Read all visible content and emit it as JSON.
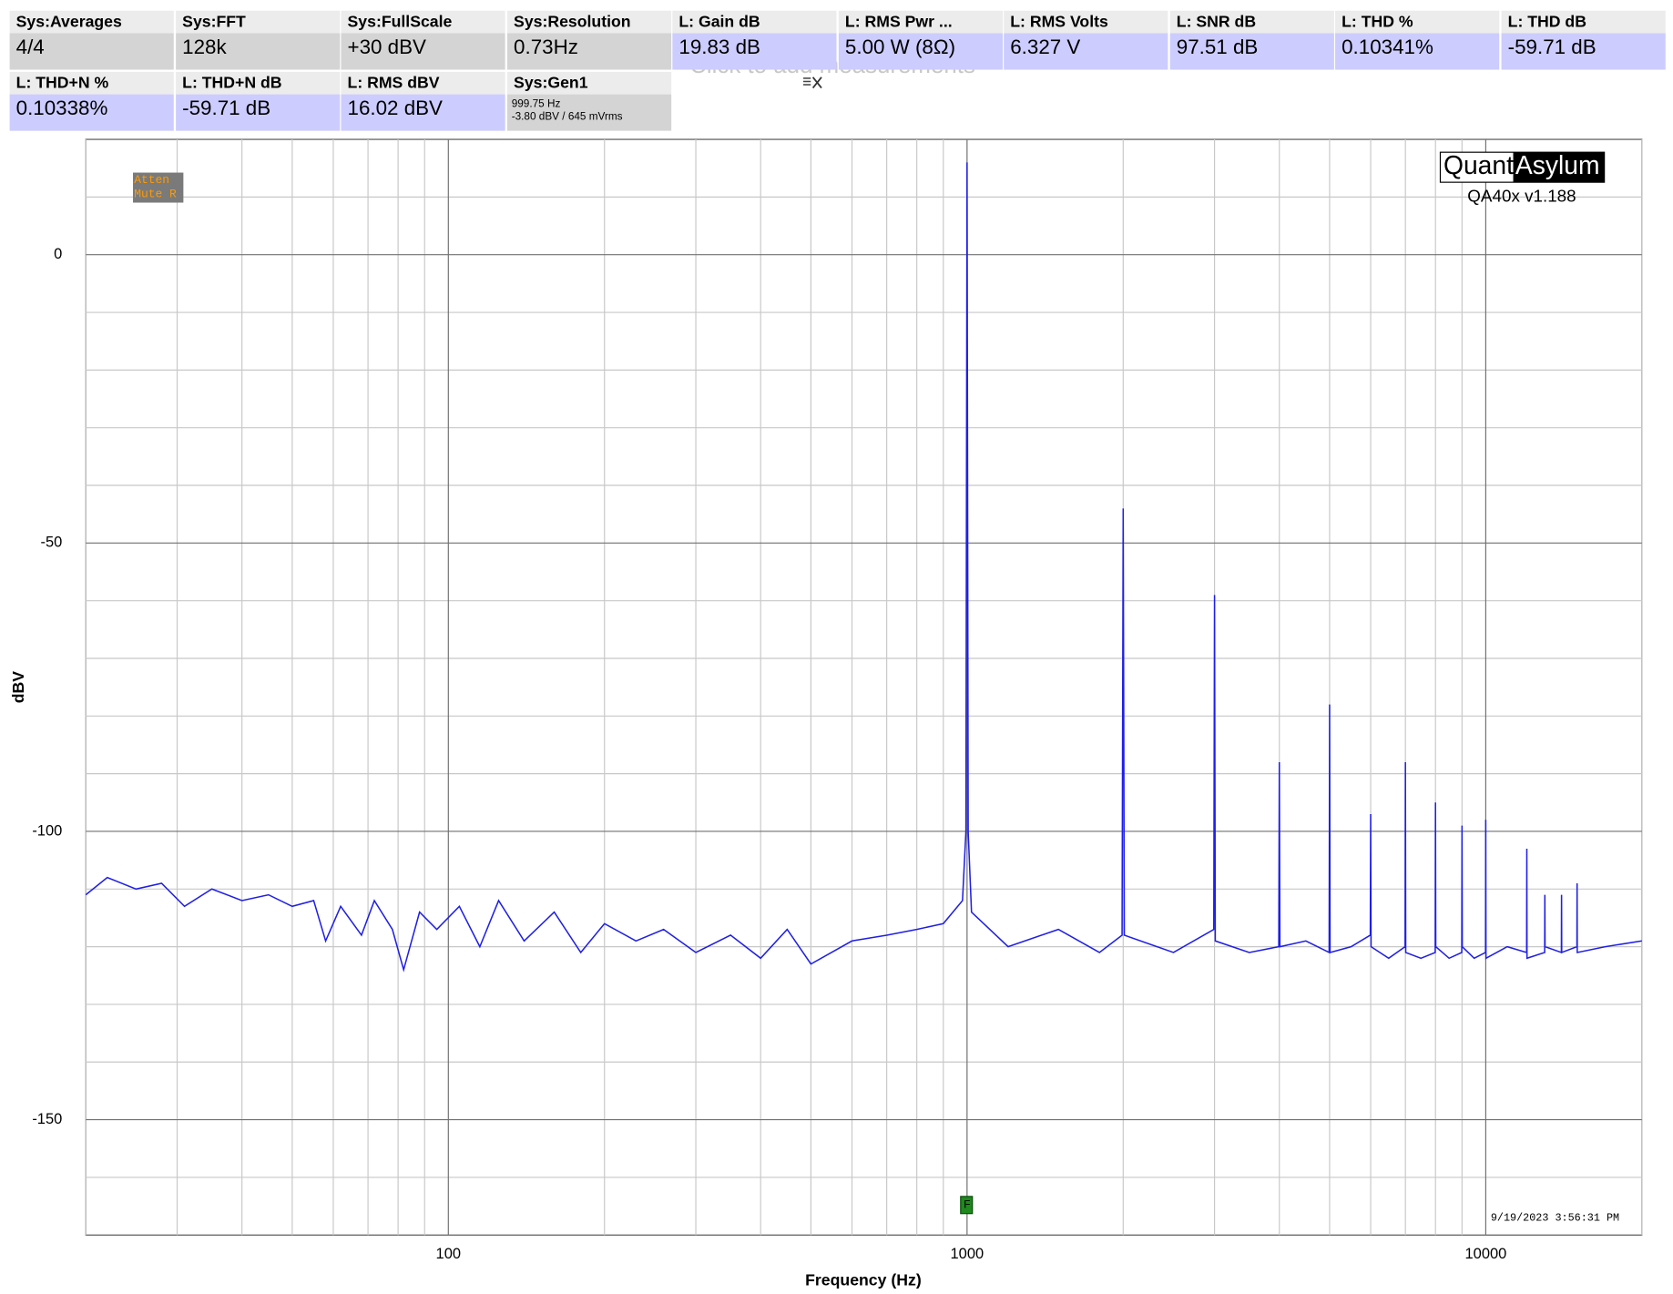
{
  "tiles": [
    {
      "title": "Sys:Averages",
      "value": "4/4",
      "color": "#d4d4d4"
    },
    {
      "title": "Sys:FFT",
      "value": "128k",
      "color": "#d4d4d4"
    },
    {
      "title": "Sys:FullScale",
      "value": "+30 dBV",
      "color": "#d4d4d4"
    },
    {
      "title": "Sys:Resolution",
      "value": "0.73Hz",
      "color": "#d4d4d4"
    },
    {
      "title": "L: Gain dB",
      "value": "19.83 dB",
      "color": "#ccccff"
    },
    {
      "title": "L: RMS Pwr ...",
      "value": "5.00 W (8Ω)",
      "color": "#ccccff"
    },
    {
      "title": "L: RMS Volts",
      "value": "6.327 V",
      "color": "#ccccff"
    },
    {
      "title": "L: SNR dB",
      "value": "97.51 dB",
      "color": "#ccccff"
    },
    {
      "title": "L: THD %",
      "value": "0.10341%",
      "color": "#ccccff"
    },
    {
      "title": "L: THD dB",
      "value": "-59.71 dB",
      "color": "#ccccff"
    },
    {
      "title": "L: THD+N %",
      "value": "0.10338%",
      "color": "#ccccff"
    },
    {
      "title": "L: THD+N dB",
      "value": "-59.71 dB",
      "color": "#ccccff"
    },
    {
      "title": "L: RMS dBV",
      "value": "16.02 dBV",
      "color": "#ccccff"
    }
  ],
  "gen_tile": {
    "title": "Sys:Gen1",
    "line1": "999.75 Hz",
    "line2": "-3.80 dBV  / 645 mVrms"
  },
  "add_hint": "Click to add measurements",
  "badge": [
    "Atten",
    "Mute R"
  ],
  "logo": {
    "left": "Quant",
    "right": "Asylum",
    "version": "QA40x v1.188"
  },
  "timestamp": "9/19/2023 3:56:31 PM",
  "marker": "F",
  "chart_data": {
    "type": "line",
    "xlabel": "Frequency (Hz)",
    "ylabel": "dBV",
    "xscale": "log",
    "grid": true,
    "color": "#1f1fe6",
    "xlim": [
      20,
      20000
    ],
    "ylim": [
      -170,
      20
    ],
    "xticks": [
      100,
      1000,
      10000
    ],
    "x_minor_ticks": [
      20,
      30,
      40,
      50,
      60,
      70,
      80,
      90,
      200,
      300,
      400,
      500,
      600,
      700,
      800,
      900,
      2000,
      3000,
      4000,
      5000,
      6000,
      7000,
      8000,
      9000,
      20000
    ],
    "yticks": [
      0,
      -50,
      -100,
      -150
    ],
    "y_minor_ticks": [
      10,
      -10,
      -20,
      -30,
      -40,
      -60,
      -70,
      -80,
      -90,
      -110,
      -120,
      -130,
      -140,
      -160
    ],
    "x": [
      20,
      22,
      25,
      28,
      31,
      35,
      40,
      45,
      50,
      55,
      58,
      62,
      68,
      72,
      78,
      82,
      88,
      95,
      105,
      115,
      125,
      140,
      160,
      180,
      200,
      230,
      260,
      300,
      350,
      400,
      450,
      500,
      600,
      700,
      800,
      900,
      980,
      995,
      1000,
      1005,
      1020,
      1200,
      1500,
      1800,
      1990,
      2000,
      2010,
      2500,
      2990,
      3000,
      3010,
      3500,
      3990,
      4000,
      4010,
      4500,
      4990,
      5000,
      5010,
      5500,
      5990,
      6000,
      6010,
      6500,
      6990,
      7000,
      7010,
      7500,
      7990,
      8000,
      8010,
      8500,
      8990,
      9000,
      9010,
      9500,
      9990,
      10000,
      10010,
      11000,
      11990,
      12000,
      12010,
      12990,
      13000,
      13010,
      13990,
      14000,
      14010,
      14990,
      15000,
      15010,
      17000,
      20000
    ],
    "values": [
      -111,
      -108,
      -110,
      -109,
      -113,
      -110,
      -112,
      -111,
      -113,
      -112,
      -119,
      -113,
      -118,
      -112,
      -117,
      -124,
      -114,
      -117,
      -113,
      -120,
      -112,
      -119,
      -114,
      -121,
      -116,
      -119,
      -117,
      -121,
      -118,
      -122,
      -117,
      -123,
      -119,
      -118,
      -117,
      -116,
      -112,
      -100,
      16,
      -100,
      -114,
      -120,
      -117,
      -121,
      -118,
      -44,
      -118,
      -121,
      -117,
      -59,
      -119,
      -121,
      -120,
      -88,
      -120,
      -119,
      -121,
      -78,
      -121,
      -120,
      -118,
      -97,
      -120,
      -122,
      -120,
      -88,
      -121,
      -122,
      -121,
      -95,
      -120,
      -122,
      -121,
      -99,
      -120,
      -122,
      -121,
      -98,
      -122,
      -120,
      -121,
      -103,
      -122,
      -121,
      -111,
      -120,
      -121,
      -111,
      -121,
      -120,
      -109,
      -121,
      -120,
      -119
    ]
  }
}
